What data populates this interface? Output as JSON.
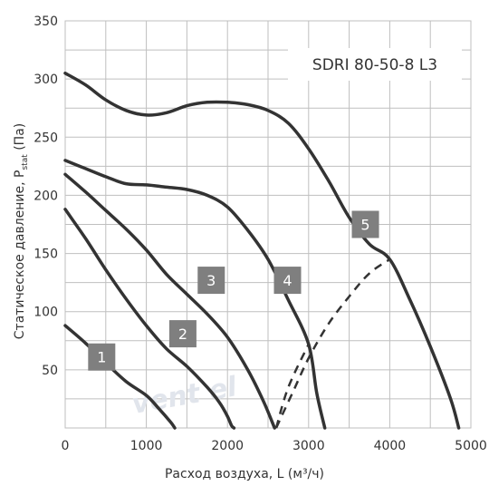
{
  "chart_data": {
    "type": "line",
    "title": "SDRI 80-50-8 L3",
    "xlabel": "Расход воздуха, L (м³/ч)",
    "ylabel_main": "Статическое давление, P",
    "ylabel_sub": "stat",
    "ylabel_unit": " (Па)",
    "xlim": [
      0,
      5000
    ],
    "ylim": [
      0,
      350
    ],
    "x_ticks": [
      0,
      1000,
      2000,
      3000,
      4000,
      5000
    ],
    "y_ticks": [
      50,
      100,
      150,
      200,
      250,
      300,
      350
    ],
    "grid": true,
    "watermark": "vent el",
    "colors": {
      "curve": "#333333",
      "grid": "#bfbfbf",
      "label_bg": "#7f7f7f",
      "label_text": "#ffffff",
      "watermark": "#e1e5ec"
    },
    "series": [
      {
        "name": "1",
        "points": [
          [
            0,
            88
          ],
          [
            250,
            73
          ],
          [
            500,
            56
          ],
          [
            750,
            40
          ],
          [
            1000,
            28
          ],
          [
            1150,
            17
          ],
          [
            1300,
            5
          ],
          [
            1350,
            0
          ]
        ]
      },
      {
        "name": "2",
        "points": [
          [
            0,
            188
          ],
          [
            250,
            163
          ],
          [
            500,
            136
          ],
          [
            750,
            111
          ],
          [
            1000,
            88
          ],
          [
            1250,
            68
          ],
          [
            1500,
            53
          ],
          [
            1750,
            35
          ],
          [
            1900,
            22
          ],
          [
            2000,
            10
          ],
          [
            2050,
            2
          ],
          [
            2080,
            0
          ]
        ]
      },
      {
        "name": "3",
        "points": [
          [
            0,
            218
          ],
          [
            250,
            203
          ],
          [
            500,
            187
          ],
          [
            750,
            171
          ],
          [
            1000,
            153
          ],
          [
            1250,
            132
          ],
          [
            1500,
            115
          ],
          [
            1750,
            98
          ],
          [
            2000,
            78
          ],
          [
            2250,
            50
          ],
          [
            2450,
            22
          ],
          [
            2580,
            0
          ]
        ]
      },
      {
        "name": "4",
        "points": [
          [
            0,
            230
          ],
          [
            250,
            223
          ],
          [
            500,
            216
          ],
          [
            750,
            210
          ],
          [
            1000,
            209
          ],
          [
            1250,
            207
          ],
          [
            1500,
            205
          ],
          [
            1750,
            200
          ],
          [
            2000,
            190
          ],
          [
            2250,
            170
          ],
          [
            2500,
            145
          ],
          [
            2750,
            110
          ],
          [
            3000,
            72
          ],
          [
            3100,
            30
          ],
          [
            3200,
            0
          ]
        ]
      },
      {
        "name": "5",
        "points": [
          [
            0,
            305
          ],
          [
            250,
            295
          ],
          [
            500,
            282
          ],
          [
            750,
            273
          ],
          [
            1000,
            269
          ],
          [
            1250,
            271
          ],
          [
            1500,
            277
          ],
          [
            1750,
            280
          ],
          [
            2000,
            280
          ],
          [
            2250,
            278
          ],
          [
            2500,
            273
          ],
          [
            2750,
            262
          ],
          [
            3000,
            240
          ],
          [
            3250,
            212
          ],
          [
            3500,
            181
          ],
          [
            3750,
            158
          ],
          [
            4000,
            145
          ],
          [
            4250,
            110
          ],
          [
            4500,
            70
          ],
          [
            4750,
            25
          ],
          [
            4850,
            0
          ]
        ]
      }
    ],
    "system_lines": [
      {
        "points": [
          [
            2600,
            0
          ],
          [
            2800,
            30
          ],
          [
            3000,
            60
          ],
          [
            3250,
            90
          ],
          [
            3500,
            113
          ],
          [
            3750,
            133
          ],
          [
            4000,
            145
          ]
        ]
      },
      {
        "points": [
          [
            2600,
            0
          ],
          [
            2750,
            35
          ],
          [
            3000,
            72
          ]
        ]
      }
    ],
    "label_positions": [
      {
        "name": "1",
        "x": 450,
        "y": 61
      },
      {
        "name": "2",
        "x": 1450,
        "y": 81
      },
      {
        "name": "3",
        "x": 1800,
        "y": 127
      },
      {
        "name": "4",
        "x": 2740,
        "y": 127
      },
      {
        "name": "5",
        "x": 3700,
        "y": 175
      }
    ]
  }
}
